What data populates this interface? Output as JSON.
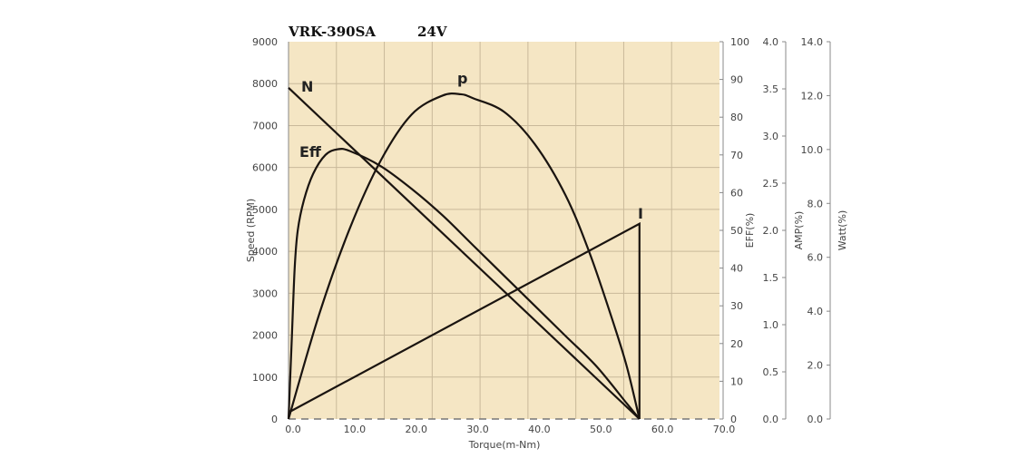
{
  "chart_data": {
    "type": "line",
    "title": "VRK-390SA",
    "subtitle": "24V",
    "xlabel": "Torque(m-Nm)",
    "xlim": [
      0,
      70
    ],
    "xticks": [
      "0.0",
      "10.0",
      "20.0",
      "30.0",
      "40.0",
      "50.0",
      "60.0",
      "70.0"
    ],
    "axes": [
      {
        "id": "speed",
        "label": "Speed (RPM)",
        "lim": [
          0,
          9000
        ],
        "ticks": [
          "0",
          "1000",
          "2000",
          "3000",
          "4000",
          "5000",
          "6000",
          "7000",
          "8000",
          "9000"
        ]
      },
      {
        "id": "eff",
        "label": "EFF(%)",
        "lim": [
          0,
          100
        ],
        "ticks": [
          "0",
          "10",
          "20",
          "30",
          "40",
          "50",
          "60",
          "70",
          "80",
          "90",
          "100"
        ]
      },
      {
        "id": "amp",
        "label": "AMP(%)",
        "lim": [
          0,
          4
        ],
        "ticks": [
          "0.0",
          "0.5",
          "1.0",
          "1.5",
          "2.0",
          "2.5",
          "3.0",
          "3.5",
          "4.0"
        ]
      },
      {
        "id": "watt",
        "label": "Watt(%)",
        "lim": [
          0,
          14
        ],
        "ticks": [
          "0.0",
          "2.0",
          "4.0",
          "6.0",
          "8.0",
          "10.0",
          "12.0",
          "14.0"
        ]
      }
    ],
    "grid": true,
    "background": "#f5e6c4",
    "series": [
      {
        "name": "N",
        "axis": "speed",
        "points": [
          [
            0,
            7900
          ],
          [
            57,
            0
          ]
        ]
      },
      {
        "name": "Eff",
        "axis": "eff",
        "points": [
          [
            0,
            0
          ],
          [
            0.5,
            20
          ],
          [
            1,
            40
          ],
          [
            1.5,
            50
          ],
          [
            2.5,
            58
          ],
          [
            4,
            65
          ],
          [
            6,
            70
          ],
          [
            8,
            71.5
          ],
          [
            10,
            71
          ],
          [
            15,
            67
          ],
          [
            20,
            61
          ],
          [
            25,
            54
          ],
          [
            30,
            46
          ],
          [
            35,
            38
          ],
          [
            40,
            30
          ],
          [
            45,
            22
          ],
          [
            50,
            14
          ],
          [
            55,
            4
          ],
          [
            57,
            0
          ]
        ]
      },
      {
        "name": "p",
        "axis": "watt",
        "points": [
          [
            0,
            0
          ],
          [
            5,
            3.9
          ],
          [
            10,
            7.1
          ],
          [
            15,
            9.6
          ],
          [
            20,
            11.3
          ],
          [
            25,
            12.0
          ],
          [
            28,
            12.05
          ],
          [
            30,
            11.9
          ],
          [
            35,
            11.4
          ],
          [
            40,
            10.2
          ],
          [
            45,
            8.3
          ],
          [
            49,
            6.1
          ],
          [
            53,
            3.4
          ],
          [
            55,
            1.9
          ],
          [
            57,
            0
          ]
        ]
      },
      {
        "name": "I",
        "axis": "amp",
        "points": [
          [
            0,
            0.07
          ],
          [
            57,
            2.07
          ],
          [
            57,
            0
          ]
        ]
      }
    ]
  }
}
